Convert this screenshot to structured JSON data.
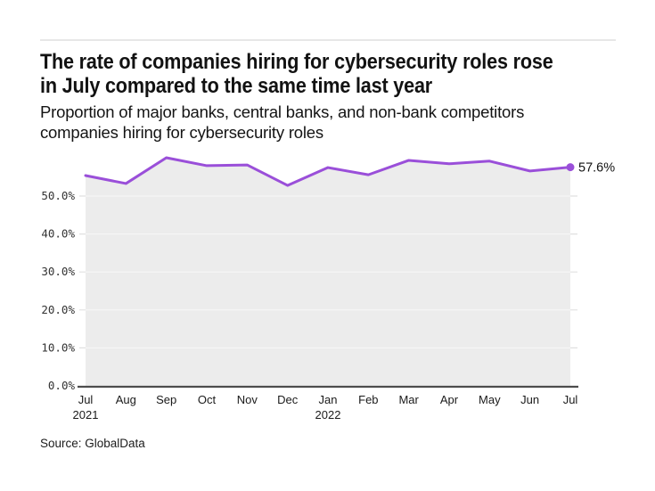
{
  "header": {
    "title_lines": [
      "The rate of companies hiring for cybersecurity roles rose",
      "in July compared to the same time last year"
    ],
    "subtitle_lines": [
      "Proportion of major banks, central banks, and non-bank competitors",
      "companies hiring for cybersecurity roles"
    ]
  },
  "footer": {
    "source": "Source: GlobalData"
  },
  "chart_data": {
    "type": "area",
    "title": "The rate of companies hiring for cybersecurity roles rose in July compared to the same time last year",
    "subtitle": "Proportion of major banks, central banks, and non-bank competitors companies hiring for cybersecurity roles",
    "x": [
      "Jul 2021",
      "Aug",
      "Sep",
      "Oct",
      "Nov",
      "Dec",
      "Jan 2022",
      "Feb",
      "Mar",
      "Apr",
      "May",
      "Jun",
      "Jul 2022"
    ],
    "x_tick_labels": [
      {
        "month": "Jul",
        "year": "2021"
      },
      {
        "month": "Aug"
      },
      {
        "month": "Sep"
      },
      {
        "month": "Oct"
      },
      {
        "month": "Nov"
      },
      {
        "month": "Dec"
      },
      {
        "month": "Jan",
        "year": "2022"
      },
      {
        "month": "Feb"
      },
      {
        "month": "Mar"
      },
      {
        "month": "Apr"
      },
      {
        "month": "May"
      },
      {
        "month": "Jun"
      },
      {
        "month": "Jul"
      }
    ],
    "series": [
      {
        "name": "Proportion of companies hiring for cybersecurity roles (%)",
        "values": [
          55.4,
          53.3,
          60.1,
          58.0,
          58.2,
          52.8,
          57.5,
          55.6,
          59.4,
          58.5,
          59.2,
          56.6,
          57.6
        ]
      }
    ],
    "end_point_label": "57.6%",
    "y_ticks": [
      {
        "value": 0,
        "label": "0.0%"
      },
      {
        "value": 10,
        "label": "10.0%"
      },
      {
        "value": 20,
        "label": "20.0%"
      },
      {
        "value": 30,
        "label": "30.0%"
      },
      {
        "value": 40,
        "label": "40.0%"
      },
      {
        "value": 50,
        "label": "50.0%"
      }
    ],
    "ylim": [
      0,
      62
    ],
    "grid": true,
    "legend_position": "none",
    "source": "Source: GlobalData",
    "colors": {
      "line": "#9a4fd9",
      "area_fill": "#ececec",
      "gridline": "#e0e0e0",
      "axis_line": "#4d4d4d",
      "tick_label": "#333333",
      "end_label": "#111111"
    }
  }
}
